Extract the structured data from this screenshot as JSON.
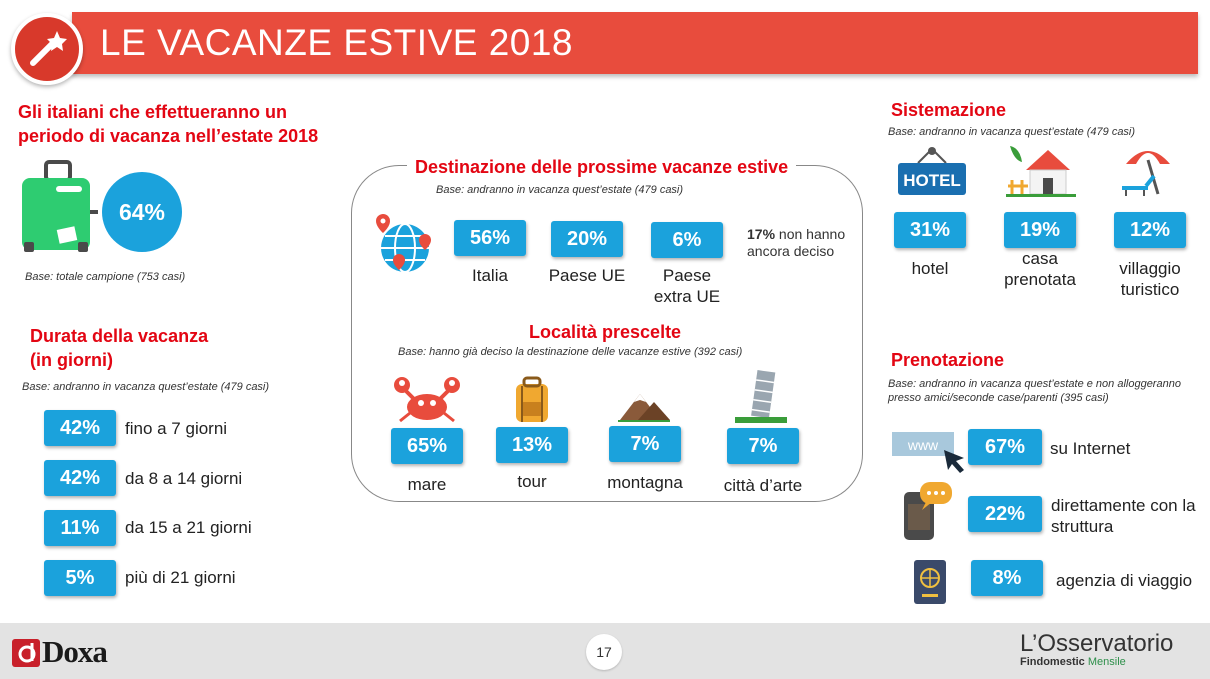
{
  "header": {
    "title": "LE VACANZE ESTIVE 2018"
  },
  "intro": {
    "heading_line1": "Gli italiani che effettueranno un",
    "heading_line2": "periodo di vacanza nell’estate 2018",
    "value": "64%",
    "base": "Base: totale campione (753 casi)"
  },
  "duration": {
    "heading_line1": "Durata della vacanza",
    "heading_line2": "(in giorni)",
    "base": "Base: andranno in vacanza quest’estate (479 casi)",
    "rows": [
      {
        "value": "42%",
        "label": "fino a 7 giorni"
      },
      {
        "value": "42%",
        "label": "da 8 a 14 giorni"
      },
      {
        "value": "11%",
        "label": "da 15 a 21 giorni"
      },
      {
        "value": "5%",
        "label": "più di 21 giorni"
      }
    ]
  },
  "destination": {
    "title": "Destinazione delle prossime vacanze estive",
    "base": "Base: andranno in vacanza quest’estate (479 casi)",
    "items": [
      {
        "value": "56%",
        "label": "Italia"
      },
      {
        "value": "20%",
        "label": "Paese UE"
      },
      {
        "value": "6%",
        "label_line1": "Paese",
        "label_line2": "extra UE"
      }
    ],
    "undecided_value": "17%",
    "undecided_text1": " non hanno",
    "undecided_text2": "ancora deciso"
  },
  "localities": {
    "title": "Località prescelte",
    "base": "Base: hanno già deciso la destinazione delle vacanze estive (392 casi)",
    "items": [
      {
        "value": "65%",
        "label": "mare"
      },
      {
        "value": "13%",
        "label": "tour"
      },
      {
        "value": "7%",
        "label": "montagna"
      },
      {
        "value": "7%",
        "label": "città d’arte"
      }
    ]
  },
  "accommodation": {
    "title": "Sistemazione",
    "base": "Base: andranno in vacanza quest’estate (479 casi)",
    "hotel_sign": "HOTEL",
    "items": [
      {
        "value": "31%",
        "label_line1": "hotel",
        "label_line2": ""
      },
      {
        "value": "19%",
        "label_line1": "casa",
        "label_line2": "prenotata"
      },
      {
        "value": "12%",
        "label_line1": "villaggio",
        "label_line2": "turistico"
      }
    ]
  },
  "booking": {
    "title": "Prenotazione",
    "base_line1": "Base: andranno in vacanza quest’estate e non alloggeranno",
    "base_line2": "presso amici/seconde case/parenti (395 casi)",
    "www": "www",
    "items": [
      {
        "value": "67%",
        "label_line1": "su Internet",
        "label_line2": ""
      },
      {
        "value": "22%",
        "label_line1": "direttamente con la",
        "label_line2": "struttura"
      },
      {
        "value": "8%",
        "label_line1": "agenzia di viaggio",
        "label_line2": ""
      }
    ]
  },
  "footer": {
    "page": "17",
    "doxa": "Doxa",
    "obs_title": "L’Osservatorio",
    "obs_sub1": "Findomestic",
    "obs_sub2": "Mensile"
  },
  "colors": {
    "banner": "#e84c3d",
    "accent_red": "#e30613",
    "pill": "#1ba2dc"
  }
}
